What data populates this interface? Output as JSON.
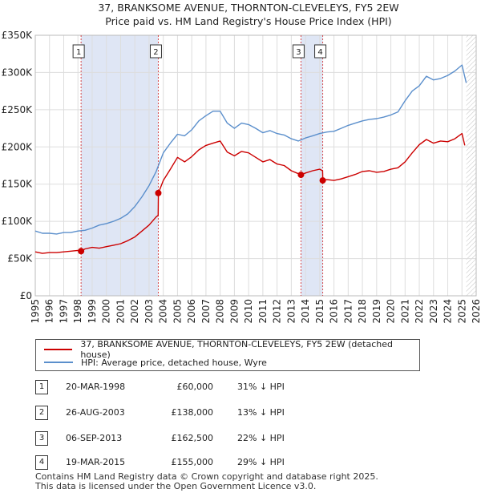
{
  "chart_data": {
    "type": "line",
    "title": "37, BRANKSOME AVENUE, THORNTON-CLEVELEYS, FY5 2EW",
    "subtitle": "Price paid vs. HM Land Registry's House Price Index (HPI)",
    "xlabel": "",
    "ylabel": "",
    "xlim": [
      1995,
      2026
    ],
    "ylim": [
      0,
      350000
    ],
    "x_ticks": [
      1995,
      1996,
      1997,
      1998,
      1999,
      2000,
      2001,
      2002,
      2003,
      2004,
      2005,
      2006,
      2007,
      2008,
      2009,
      2010,
      2011,
      2012,
      2013,
      2014,
      2015,
      2016,
      2017,
      2018,
      2019,
      2020,
      2021,
      2022,
      2023,
      2024,
      2025,
      2026
    ],
    "x_tick_labels": [
      "1995",
      "1996",
      "1997",
      "1998",
      "1999",
      "2000",
      "2001",
      "2002",
      "2003",
      "2004",
      "2005",
      "2006",
      "2007",
      "2008",
      "2009",
      "2010",
      "2011",
      "2012",
      "2013",
      "2014",
      "2015",
      "2016",
      "2017",
      "2018",
      "2019",
      "2020",
      "2021",
      "2022",
      "2023",
      "2024",
      "2025",
      "2026"
    ],
    "y_ticks": [
      0,
      50000,
      100000,
      150000,
      200000,
      250000,
      300000,
      350000
    ],
    "y_tick_labels": [
      "£0",
      "£50K",
      "£100K",
      "£150K",
      "£200K",
      "£250K",
      "£300K",
      "£350K"
    ],
    "grid": true,
    "colors": {
      "property": "#cc0000",
      "hpi": "#5b8fcc",
      "band": "#dfe6f5",
      "future_hatch": "#999999"
    },
    "shaded_periods": [
      [
        1998.22,
        2003.65
      ],
      [
        2013.68,
        2015.21
      ]
    ],
    "future_from": 2025.3,
    "series": [
      {
        "name": "37, BRANKSOME AVENUE, THORNTON-CLEVELEYS, FY5 2EW (detached house)",
        "x": [
          1995.0,
          1995.5,
          1996.0,
          1996.5,
          1997.0,
          1997.5,
          1998.0,
          1998.22,
          1998.5,
          1999.0,
          1999.5,
          2000.0,
          2000.5,
          2001.0,
          2001.5,
          2002.0,
          2002.5,
          2003.0,
          2003.5,
          2003.64,
          2003.66,
          2004.0,
          2004.5,
          2005.0,
          2005.5,
          2006.0,
          2006.5,
          2007.0,
          2007.5,
          2008.0,
          2008.5,
          2009.0,
          2009.5,
          2010.0,
          2010.5,
          2011.0,
          2011.5,
          2012.0,
          2012.5,
          2013.0,
          2013.5,
          2013.68,
          2014.0,
          2014.5,
          2015.0,
          2015.2,
          2015.22,
          2015.5,
          2016.0,
          2016.5,
          2017.0,
          2017.5,
          2018.0,
          2018.5,
          2019.0,
          2019.5,
          2020.0,
          2020.5,
          2021.0,
          2021.5,
          2022.0,
          2022.5,
          2023.0,
          2023.5,
          2024.0,
          2024.5,
          2025.0,
          2025.2
        ],
        "values": [
          59000,
          57000,
          58000,
          58000,
          59000,
          60000,
          61000,
          60000,
          63000,
          65000,
          64000,
          66000,
          68000,
          70000,
          74000,
          79000,
          87000,
          95000,
          106000,
          108000,
          138000,
          155000,
          170000,
          186000,
          180000,
          187000,
          196000,
          202000,
          205000,
          208000,
          193000,
          188000,
          194000,
          192000,
          186000,
          180000,
          183000,
          177000,
          175000,
          168000,
          164000,
          162500,
          165000,
          168000,
          170000,
          168000,
          155000,
          156000,
          155000,
          157000,
          160000,
          163000,
          167000,
          168000,
          166000,
          167000,
          170000,
          172000,
          180000,
          192000,
          203000,
          210000,
          205000,
          208000,
          207000,
          211000,
          218000,
          202000
        ],
        "color": "#cc0000"
      },
      {
        "name": "HPI: Average price, detached house, Wyre",
        "x": [
          1995.0,
          1995.5,
          1996.0,
          1996.5,
          1997.0,
          1997.5,
          1998.0,
          1998.5,
          1999.0,
          1999.5,
          2000.0,
          2000.5,
          2001.0,
          2001.5,
          2002.0,
          2002.5,
          2003.0,
          2003.5,
          2004.0,
          2004.5,
          2005.0,
          2005.5,
          2006.0,
          2006.5,
          2007.0,
          2007.5,
          2008.0,
          2008.5,
          2009.0,
          2009.5,
          2010.0,
          2010.5,
          2011.0,
          2011.5,
          2012.0,
          2012.5,
          2013.0,
          2013.5,
          2014.0,
          2014.5,
          2015.0,
          2015.5,
          2016.0,
          2016.5,
          2017.0,
          2017.5,
          2018.0,
          2018.5,
          2019.0,
          2019.5,
          2020.0,
          2020.5,
          2021.0,
          2021.5,
          2022.0,
          2022.5,
          2023.0,
          2023.5,
          2024.0,
          2024.5,
          2025.0,
          2025.3
        ],
        "values": [
          87000,
          84000,
          84000,
          83000,
          85000,
          85000,
          87000,
          88000,
          91000,
          95000,
          97000,
          100000,
          104000,
          110000,
          120000,
          133000,
          148000,
          167000,
          192000,
          205000,
          217000,
          215000,
          223000,
          235000,
          242000,
          248000,
          248000,
          232000,
          225000,
          232000,
          230000,
          225000,
          219000,
          222000,
          218000,
          216000,
          211000,
          208000,
          212000,
          215000,
          218000,
          220000,
          221000,
          225000,
          229000,
          232000,
          235000,
          237000,
          238000,
          240000,
          243000,
          247000,
          262000,
          275000,
          282000,
          295000,
          290000,
          292000,
          296000,
          302000,
          310000,
          286000
        ],
        "color": "#5b8fcc"
      }
    ],
    "markers": [
      {
        "label": "1",
        "x": 1998.22,
        "y": 60000
      },
      {
        "label": "2",
        "x": 2003.65,
        "y": 138000
      },
      {
        "label": "3",
        "x": 2013.68,
        "y": 162500
      },
      {
        "label": "4",
        "x": 2015.21,
        "y": 155000
      }
    ]
  },
  "legend": {
    "property_label": "37, BRANKSOME AVENUE, THORNTON-CLEVELEYS, FY5 2EW (detached house)",
    "hpi_label": "HPI: Average price, detached house, Wyre"
  },
  "transactions": [
    {
      "num": "1",
      "date": "20-MAR-1998",
      "price": "£60,000",
      "hpi": "31% ↓ HPI"
    },
    {
      "num": "2",
      "date": "26-AUG-2003",
      "price": "£138,000",
      "hpi": "13% ↓ HPI"
    },
    {
      "num": "3",
      "date": "06-SEP-2013",
      "price": "£162,500",
      "hpi": "22% ↓ HPI"
    },
    {
      "num": "4",
      "date": "19-MAR-2015",
      "price": "£155,000",
      "hpi": "29% ↓ HPI"
    }
  ],
  "footer": {
    "line1": "Contains HM Land Registry data © Crown copyright and database right 2025.",
    "line2": "This data is licensed under the Open Government Licence v3.0."
  }
}
